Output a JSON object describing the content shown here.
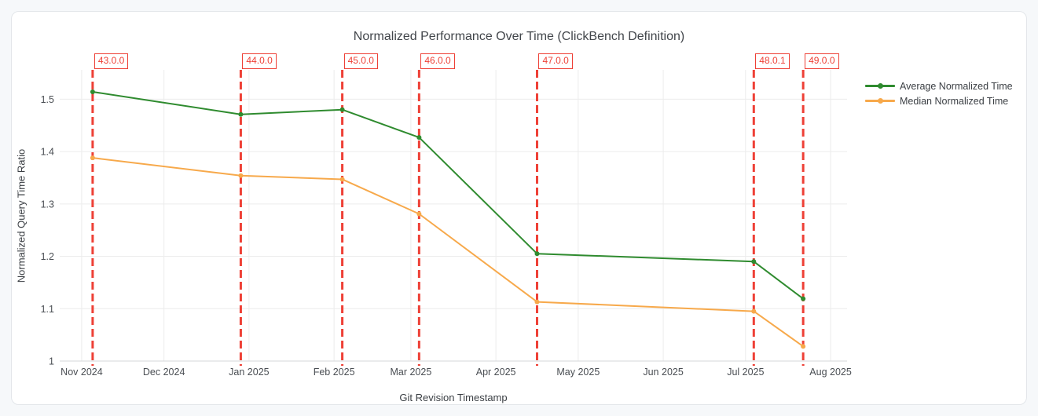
{
  "page": {
    "background_color": "#f6f8fa",
    "card_background": "#ffffff",
    "card_border": "#e3e6ea"
  },
  "chart_data": {
    "type": "line",
    "title": "Normalized Performance Over Time (ClickBench Definition)",
    "xlabel": "Git Revision Timestamp",
    "ylabel": "Normalized Query Time Ratio",
    "grid": true,
    "legend_position": "outside-right-top",
    "colors": {
      "grid": "#ececec",
      "axis_line": "#d4d7da",
      "tick_text": "#4a4e53",
      "title_text": "#42464b",
      "event": "#ee4036"
    },
    "x_axis": {
      "type": "date",
      "range": [
        "2024-10-24",
        "2025-08-07"
      ],
      "ticks": [
        {
          "date": "2024-11-01",
          "label": "Nov 2024"
        },
        {
          "date": "2024-12-01",
          "label": "Dec 2024"
        },
        {
          "date": "2025-01-01",
          "label": "Jan 2025"
        },
        {
          "date": "2025-02-01",
          "label": "Feb 2025"
        },
        {
          "date": "2025-03-01",
          "label": "Mar 2025"
        },
        {
          "date": "2025-04-01",
          "label": "Apr 2025"
        },
        {
          "date": "2025-05-01",
          "label": "May 2025"
        },
        {
          "date": "2025-06-01",
          "label": "Jun 2025"
        },
        {
          "date": "2025-07-01",
          "label": "Jul 2025"
        },
        {
          "date": "2025-08-01",
          "label": "Aug 2025"
        }
      ]
    },
    "y_axis": {
      "range": [
        1.0,
        1.556
      ],
      "ticks": [
        {
          "value": 1.0,
          "label": "1"
        },
        {
          "value": 1.1,
          "label": "1.1"
        },
        {
          "value": 1.2,
          "label": "1.2"
        },
        {
          "value": 1.3,
          "label": "1.3"
        },
        {
          "value": 1.4,
          "label": "1.4"
        },
        {
          "value": 1.5,
          "label": "1.5"
        }
      ]
    },
    "series": [
      {
        "name": "Average Normalized Time",
        "color": "#2f8b2f",
        "points": [
          {
            "x": "2024-11-05",
            "y": 1.514
          },
          {
            "x": "2024-12-29",
            "y": 1.471
          },
          {
            "x": "2025-02-04",
            "y": 1.48
          },
          {
            "x": "2025-03-04",
            "y": 1.427
          },
          {
            "x": "2025-04-16",
            "y": 1.205
          },
          {
            "x": "2025-07-04",
            "y": 1.19
          },
          {
            "x": "2025-07-22",
            "y": 1.119
          }
        ]
      },
      {
        "name": "Median Normalized Time",
        "color": "#f7a94b",
        "points": [
          {
            "x": "2024-11-05",
            "y": 1.388
          },
          {
            "x": "2024-12-29",
            "y": 1.354
          },
          {
            "x": "2025-02-04",
            "y": 1.347
          },
          {
            "x": "2025-03-04",
            "y": 1.281
          },
          {
            "x": "2025-04-16",
            "y": 1.113
          },
          {
            "x": "2025-07-04",
            "y": 1.095
          },
          {
            "x": "2025-07-22",
            "y": 1.028
          }
        ]
      }
    ],
    "events": [
      {
        "x": "2024-11-05",
        "label": "43.0.0"
      },
      {
        "x": "2024-12-29",
        "label": "44.0.0"
      },
      {
        "x": "2025-02-04",
        "label": "45.0.0"
      },
      {
        "x": "2025-03-04",
        "label": "46.0.0"
      },
      {
        "x": "2025-04-16",
        "label": "47.0.0"
      },
      {
        "x": "2025-07-04",
        "label": "48.0.1"
      },
      {
        "x": "2025-07-22",
        "label": "49.0.0"
      }
    ]
  }
}
